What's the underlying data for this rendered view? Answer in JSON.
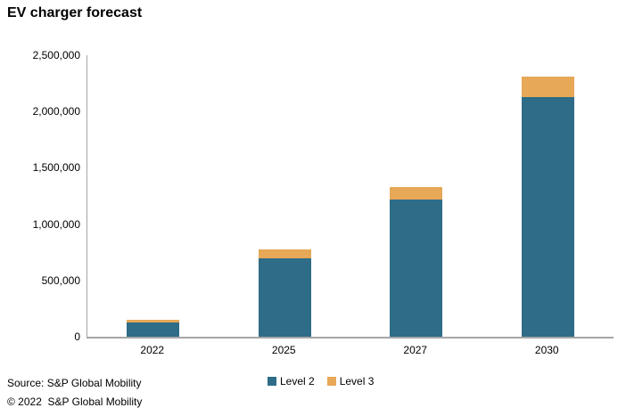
{
  "page": {
    "background": "#ffffff"
  },
  "chart_data": {
    "type": "bar",
    "stacked": true,
    "title": "EV charger forecast",
    "categories": [
      "2022",
      "2025",
      "2027",
      "2030"
    ],
    "series": [
      {
        "name": "Level 2",
        "color": "#2e6c88",
        "values": [
          125000,
          700000,
          1220000,
          2130000
        ]
      },
      {
        "name": "Level 3",
        "color": "#e7a857",
        "values": [
          25000,
          75000,
          110000,
          180000
        ]
      }
    ],
    "totals": [
      150000,
      775000,
      1330000,
      2310000
    ],
    "ylim": [
      0,
      2500000
    ],
    "yticks": [
      0,
      500000,
      1000000,
      1500000,
      2000000,
      2500000
    ],
    "ytick_labels_top_to_bottom": [
      "2,500,000",
      "2,000,000",
      "1,500,000",
      "1,000,000",
      "500,000",
      "0"
    ],
    "xlabel": "",
    "ylabel": "",
    "grid": false,
    "legend_position": "bottom-center",
    "axis_color": "#a6a6a6",
    "text_color": "#000000"
  },
  "footer": {
    "source": "Source: S&P Global Mobility",
    "copyright": "© 2022  S&P Global Mobility"
  }
}
